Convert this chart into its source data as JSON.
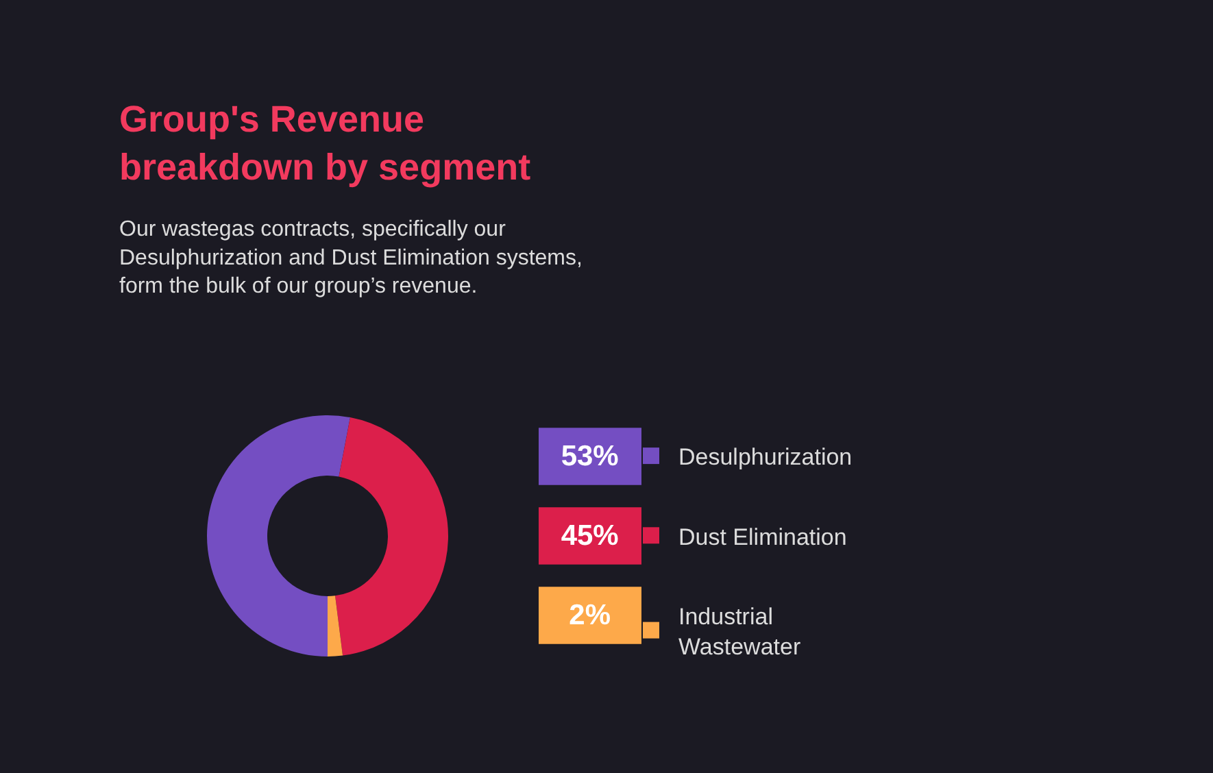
{
  "chart_data": {
    "type": "donut",
    "title": "Group's Revenue breakdown by segment",
    "subtitle": "Our wastegas contracts, specifically our Desulphurization and Dust Elimination systems, form the bulk of our group’s revenue.",
    "categories": [
      "Desulphurization",
      "Dust Elimination",
      "Industrial Wastewater"
    ],
    "values": [
      53,
      45,
      2
    ],
    "colors": [
      "#744ec2",
      "#dc1f4b",
      "#fda94a"
    ],
    "value_labels": [
      "53%",
      "45%",
      "2%"
    ],
    "legend": "right"
  }
}
